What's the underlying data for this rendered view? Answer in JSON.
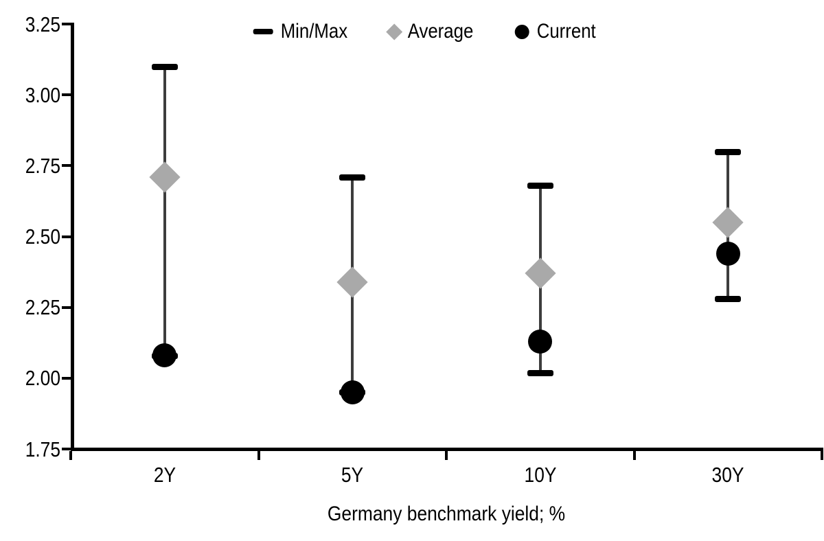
{
  "chart_data": {
    "type": "scatter",
    "subtype": "min-max-range-with-markers",
    "categories": [
      "2Y",
      "5Y",
      "10Y",
      "30Y"
    ],
    "series": [
      {
        "name": "Min/Max",
        "marker": "dash",
        "min": [
          2.08,
          1.95,
          2.02,
          2.28
        ],
        "max": [
          3.1,
          2.71,
          2.68,
          2.8
        ]
      },
      {
        "name": "Average",
        "marker": "diamond",
        "values": [
          2.71,
          2.34,
          2.37,
          2.55
        ]
      },
      {
        "name": "Current",
        "marker": "circle",
        "values": [
          2.08,
          1.95,
          2.13,
          2.44
        ]
      }
    ],
    "legend": [
      {
        "label": "Min/Max",
        "marker": "dash"
      },
      {
        "label": "Average",
        "marker": "diamond"
      },
      {
        "label": "Current",
        "marker": "circle"
      }
    ],
    "legend_position": "top-center",
    "xlabel": "Germany benchmark yield; %",
    "ylabel": "",
    "ylim": [
      1.75,
      3.25
    ],
    "ytick_step": 0.25,
    "ytick_labels": [
      "3.25",
      "3.00",
      "2.75",
      "2.50",
      "2.25",
      "2.00",
      "1.75"
    ],
    "grid": false,
    "colors": {
      "minmax_line": "#3d3d3d",
      "minmax_cap": "#000000",
      "average": "#a9a9a9",
      "current": "#000000",
      "axis": "#000000",
      "text": "#000000",
      "background": "#ffffff"
    }
  }
}
